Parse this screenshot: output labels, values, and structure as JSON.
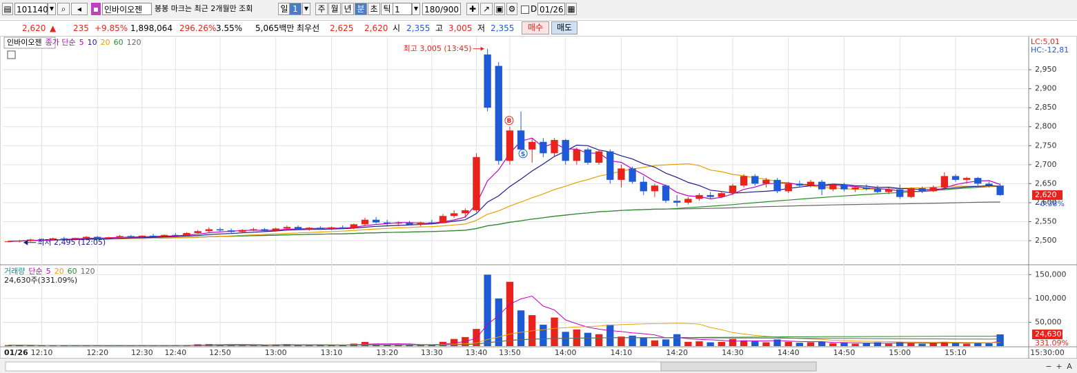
{
  "toolbar": {
    "code": "101140",
    "name": "인바이오젠",
    "notice": "봉봉 마크는 최근 2개월만 조회",
    "periods": [
      "일",
      "1",
      "주",
      "월",
      "년",
      "분",
      "초",
      "틱"
    ],
    "interval": "1",
    "count": "180/900",
    "check": "D",
    "date": "01/26"
  },
  "quote": {
    "price": "2,620",
    "arrow": "▲",
    "change": "235",
    "rate": "+9.85%",
    "volume": "1,898,064",
    "volume_ratio": "296.26%",
    "turnover": "3.55%",
    "amount": "5,065백만",
    "best": "최우선",
    "ask": "2,625",
    "bid": "2,620",
    "open_label": "시",
    "open": "2,355",
    "high_label": "고",
    "high": "3,005",
    "low_label": "저",
    "low": "2,355",
    "buy": "매수",
    "sell": "매도"
  },
  "scroll_labels": [
    "−",
    "+",
    "A"
  ],
  "chart_data": [
    {
      "type": "candlestick",
      "legend_name": "인바이오젠",
      "ma_label": "종가 단순",
      "ma_periods": [
        5,
        10,
        20,
        60,
        120
      ],
      "ma_colors": [
        "#c000c0",
        "#1a1a8c",
        "#e8a000",
        "#2a8a2a",
        "#666666"
      ],
      "up_color": "#e8231b",
      "down_color": "#1f5ad6",
      "categories": [
        null,
        null,
        null,
        "12:10",
        null,
        null,
        null,
        null,
        "12:20",
        null,
        null,
        null,
        "12:30",
        null,
        null,
        "12:40",
        null,
        null,
        null,
        "12:50",
        null,
        null,
        null,
        null,
        "13:00",
        null,
        null,
        null,
        null,
        "13:10",
        null,
        null,
        null,
        null,
        "13:20",
        null,
        null,
        null,
        "13:30",
        null,
        null,
        null,
        "13:40",
        null,
        null,
        "13:50",
        null,
        null,
        null,
        null,
        "14:00",
        null,
        null,
        null,
        null,
        "14:10",
        null,
        null,
        null,
        null,
        "14:20",
        null,
        null,
        null,
        null,
        "14:30",
        null,
        null,
        null,
        null,
        "14:40",
        null,
        null,
        null,
        null,
        "14:50",
        null,
        null,
        null,
        null,
        "15:00",
        null,
        null,
        null,
        null,
        "15:10",
        null,
        null,
        null,
        null
      ],
      "ohlc": [
        [
          2497,
          2500,
          2496,
          2498
        ],
        [
          2498,
          2502,
          2495,
          2500
        ],
        [
          2500,
          2505,
          2497,
          2503
        ],
        [
          2503,
          2506,
          2500,
          2502
        ],
        [
          2502,
          2508,
          2500,
          2506
        ],
        [
          2506,
          2510,
          2503,
          2505
        ],
        [
          2505,
          2508,
          2500,
          2507
        ],
        [
          2507,
          2512,
          2505,
          2510
        ],
        [
          2510,
          2512,
          2505,
          2506
        ],
        [
          2506,
          2510,
          2503,
          2509
        ],
        [
          2509,
          2515,
          2507,
          2512
        ],
        [
          2512,
          2515,
          2508,
          2510
        ],
        [
          2510,
          2514,
          2506,
          2513
        ],
        [
          2513,
          2518,
          2510,
          2511
        ],
        [
          2511,
          2516,
          2509,
          2515
        ],
        [
          2515,
          2520,
          2512,
          2514
        ],
        [
          2514,
          2522,
          2512,
          2520
        ],
        [
          2520,
          2528,
          2518,
          2525
        ],
        [
          2525,
          2535,
          2522,
          2530
        ],
        [
          2530,
          2535,
          2524,
          2527
        ],
        [
          2527,
          2532,
          2520,
          2523
        ],
        [
          2523,
          2530,
          2520,
          2528
        ],
        [
          2528,
          2534,
          2525,
          2530
        ],
        [
          2530,
          2533,
          2524,
          2526
        ],
        [
          2526,
          2534,
          2524,
          2532
        ],
        [
          2532,
          2540,
          2528,
          2536
        ],
        [
          2536,
          2540,
          2528,
          2530
        ],
        [
          2530,
          2536,
          2526,
          2534
        ],
        [
          2534,
          2538,
          2529,
          2531
        ],
        [
          2531,
          2537,
          2528,
          2535
        ],
        [
          2535,
          2540,
          2530,
          2533
        ],
        [
          2533,
          2545,
          2530,
          2543
        ],
        [
          2543,
          2560,
          2540,
          2555
        ],
        [
          2555,
          2562,
          2545,
          2548
        ],
        [
          2548,
          2555,
          2540,
          2545
        ],
        [
          2545,
          2550,
          2538,
          2547
        ],
        [
          2547,
          2552,
          2540,
          2542
        ],
        [
          2542,
          2550,
          2538,
          2548
        ],
        [
          2548,
          2555,
          2542,
          2546
        ],
        [
          2546,
          2570,
          2545,
          2565
        ],
        [
          2565,
          2580,
          2560,
          2572
        ],
        [
          2572,
          2585,
          2560,
          2580
        ],
        [
          2580,
          2730,
          2575,
          2720
        ],
        [
          2990,
          3005,
          2840,
          2850
        ],
        [
          2960,
          2970,
          2700,
          2710
        ],
        [
          2710,
          2800,
          2700,
          2790
        ],
        [
          2790,
          2840,
          2730,
          2740
        ],
        [
          2740,
          2770,
          2705,
          2760
        ],
        [
          2760,
          2770,
          2720,
          2730
        ],
        [
          2730,
          2770,
          2720,
          2765
        ],
        [
          2765,
          2768,
          2700,
          2710
        ],
        [
          2710,
          2745,
          2700,
          2740
        ],
        [
          2740,
          2745,
          2700,
          2705
        ],
        [
          2705,
          2740,
          2700,
          2735
        ],
        [
          2735,
          2740,
          2650,
          2660
        ],
        [
          2660,
          2700,
          2640,
          2690
        ],
        [
          2690,
          2695,
          2650,
          2655
        ],
        [
          2655,
          2670,
          2620,
          2630
        ],
        [
          2630,
          2650,
          2615,
          2645
        ],
        [
          2645,
          2648,
          2600,
          2605
        ],
        [
          2605,
          2620,
          2590,
          2600
        ],
        [
          2600,
          2615,
          2595,
          2610
        ],
        [
          2610,
          2625,
          2605,
          2620
        ],
        [
          2620,
          2628,
          2610,
          2615
        ],
        [
          2615,
          2630,
          2612,
          2625
        ],
        [
          2625,
          2650,
          2620,
          2645
        ],
        [
          2645,
          2675,
          2640,
          2670
        ],
        [
          2670,
          2675,
          2645,
          2650
        ],
        [
          2650,
          2665,
          2640,
          2660
        ],
        [
          2660,
          2665,
          2625,
          2630
        ],
        [
          2630,
          2655,
          2625,
          2650
        ],
        [
          2650,
          2658,
          2640,
          2645
        ],
        [
          2645,
          2660,
          2640,
          2655
        ],
        [
          2655,
          2660,
          2620,
          2635
        ],
        [
          2635,
          2650,
          2630,
          2648
        ],
        [
          2648,
          2652,
          2630,
          2635
        ],
        [
          2635,
          2645,
          2628,
          2640
        ],
        [
          2640,
          2648,
          2632,
          2636
        ],
        [
          2636,
          2645,
          2625,
          2628
        ],
        [
          2628,
          2640,
          2622,
          2635
        ],
        [
          2635,
          2648,
          2610,
          2615
        ],
        [
          2615,
          2640,
          2612,
          2638
        ],
        [
          2638,
          2642,
          2625,
          2630
        ],
        [
          2630,
          2645,
          2628,
          2640
        ],
        [
          2640,
          2680,
          2638,
          2670
        ],
        [
          2670,
          2675,
          2655,
          2660
        ],
        [
          2660,
          2668,
          2650,
          2665
        ],
        [
          2665,
          2668,
          2645,
          2650
        ],
        [
          2650,
          2655,
          2640,
          2645
        ],
        [
          2645,
          2650,
          2618,
          2620
        ]
      ],
      "ylim": [
        2442,
        3030
      ],
      "yticks": [
        {
          "value": 2500,
          "label": "2,500"
        },
        {
          "value": 2550,
          "label": "2,550"
        },
        {
          "value": 2600,
          "label": "2,600"
        },
        {
          "value": 2650,
          "label": "2,650"
        },
        {
          "value": 2700,
          "label": "2,700"
        },
        {
          "value": 2750,
          "label": "2,750"
        },
        {
          "value": 2800,
          "label": "2,800"
        },
        {
          "value": 2850,
          "label": "2,850"
        },
        {
          "value": 2900,
          "label": "2,900"
        },
        {
          "value": 2950,
          "label": "2,950"
        }
      ],
      "corner_labels": [
        "LC:5,01",
        "HC:-12,81"
      ],
      "last_label": "2,620",
      "last_rate": "-0.38%",
      "annotations": [
        "최고 3,005 (13:45)",
        "최저 2,495 (12:05)"
      ],
      "signals": [
        "B",
        "S"
      ],
      "date_label": "01/26",
      "end_label": "15:30:00"
    },
    {
      "type": "bar",
      "title": "거래량",
      "ma_label": "단순",
      "ma_periods": [
        5,
        20,
        60,
        120
      ],
      "ma_colors": [
        "#c000c0",
        "#e8a000",
        "#2a8a2a",
        "#666666"
      ],
      "summary": "24,630주(331.09%)",
      "values": [
        2000,
        1500,
        1200,
        1000,
        1800,
        1200,
        900,
        1500,
        1100,
        1000,
        1600,
        1200,
        1300,
        1100,
        1700,
        1200,
        2200,
        3800,
        4200,
        3100,
        2500,
        2800,
        2400,
        2000,
        3500,
        4100,
        2600,
        2300,
        1900,
        2500,
        2100,
        5200,
        8800,
        4600,
        3300,
        2800,
        2600,
        3200,
        2900,
        9000,
        15000,
        19000,
        36000,
        150000,
        100000,
        135000,
        75000,
        65000,
        45000,
        60000,
        30000,
        35000,
        28000,
        25000,
        45000,
        20000,
        22000,
        18000,
        12000,
        14000,
        25000,
        9000,
        10000,
        8000,
        9000,
        15000,
        12000,
        10000,
        8000,
        14000,
        9000,
        7000,
        8000,
        9000,
        6000,
        7000,
        5000,
        6000,
        8000,
        5000,
        9000,
        6000,
        5000,
        7000,
        9000,
        6000,
        5000,
        7000,
        6000,
        24630
      ],
      "ylim": [
        0,
        165000
      ],
      "yticks": [
        {
          "value": 50000,
          "label": "50,000"
        },
        {
          "value": 100000,
          "label": "100,000"
        },
        {
          "value": 150000,
          "label": "150,000"
        }
      ],
      "last_label": "24,630",
      "last_rate": "331.09%"
    }
  ]
}
